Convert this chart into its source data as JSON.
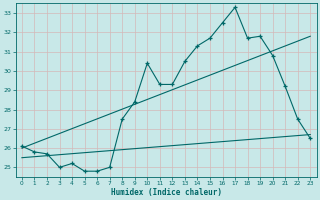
{
  "xlabel": "Humidex (Indice chaleur)",
  "background_color": "#c8e8e8",
  "line_color": "#006868",
  "grid_color": "#b0d0d0",
  "x_min": -0.5,
  "x_max": 23.5,
  "y_min": 24.5,
  "y_max": 33.5,
  "y_ticks": [
    25,
    26,
    27,
    28,
    29,
    30,
    31,
    32,
    33
  ],
  "x_ticks": [
    0,
    1,
    2,
    3,
    4,
    5,
    6,
    7,
    8,
    9,
    10,
    11,
    12,
    13,
    14,
    15,
    16,
    17,
    18,
    19,
    20,
    21,
    22,
    23
  ],
  "jagged": {
    "x": [
      0,
      1,
      2,
      3,
      4,
      5,
      6,
      7,
      8,
      9,
      10,
      11,
      12,
      13,
      14,
      15,
      16,
      17,
      18,
      19,
      20,
      21,
      22,
      23
    ],
    "y": [
      26.1,
      25.8,
      25.7,
      25.0,
      25.2,
      24.8,
      24.8,
      25.0,
      27.5,
      28.4,
      30.4,
      29.3,
      29.3,
      30.5,
      31.3,
      31.7,
      32.5,
      33.3,
      31.7,
      31.8,
      30.8,
      29.2,
      27.5,
      26.5
    ]
  },
  "line_upper": {
    "x": [
      0,
      23
    ],
    "y": [
      26.0,
      31.8
    ]
  },
  "line_lower": {
    "x": [
      0,
      23
    ],
    "y": [
      25.5,
      26.7
    ]
  }
}
